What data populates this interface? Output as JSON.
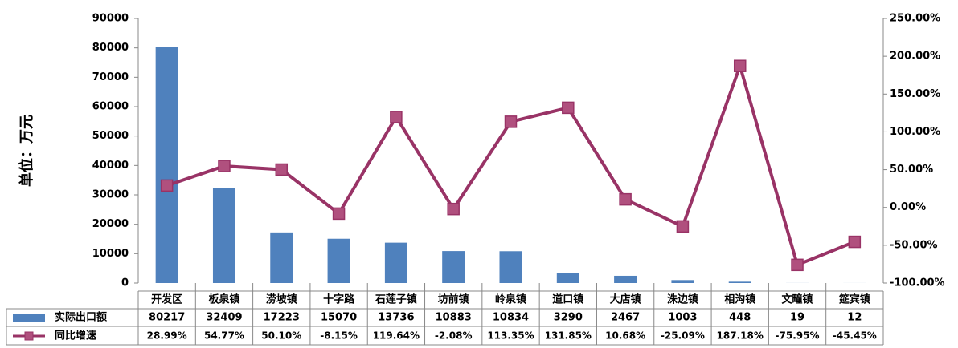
{
  "chart_data": {
    "type": "bar",
    "y_label": "单位：万元",
    "categories": [
      "开发区",
      "板泉镇",
      "涝坡镇",
      "十字路",
      "石莲子镇",
      "坊前镇",
      "岭泉镇",
      "道口镇",
      "大店镇",
      "洙边镇",
      "相沟镇",
      "文疃镇",
      "筵宾镇"
    ],
    "series": [
      {
        "name": "实际出口额",
        "color": "#4f81bd",
        "type": "bar",
        "values": [
          80217,
          32409,
          17223,
          15070,
          13736,
          10883,
          10834,
          3290,
          2467,
          1003,
          448,
          19,
          12
        ]
      },
      {
        "name": "同比增速",
        "color": "#993366",
        "type": "line",
        "axis": "y2",
        "values": [
          28.99,
          54.77,
          50.1,
          -8.15,
          119.64,
          -2.08,
          113.35,
          131.85,
          10.68,
          -25.09,
          187.18,
          -75.95,
          -45.45
        ],
        "value_labels": [
          "28.99%",
          "54.77%",
          "50.10%",
          "-8.15%",
          "119.64%",
          "-2.08%",
          "113.35%",
          "131.85%",
          "10.68%",
          "-25.09%",
          "187.18%",
          "-75.95%",
          "-45.45%"
        ]
      }
    ],
    "ylim": [
      0,
      90000
    ],
    "yticks": [
      0,
      10000,
      20000,
      30000,
      40000,
      50000,
      60000,
      70000,
      80000,
      90000
    ],
    "y2lim": [
      -100,
      250
    ],
    "y2ticks": [
      {
        "value": -100,
        "label": "-100.00%"
      },
      {
        "value": -50,
        "label": "-50.00%"
      },
      {
        "value": 0,
        "label": "0.00%"
      },
      {
        "value": 50,
        "label": "50.00%"
      },
      {
        "value": 100,
        "label": "100.00%"
      },
      {
        "value": 150,
        "label": "150.00%"
      },
      {
        "value": 200,
        "label": "200.00%"
      },
      {
        "value": 250,
        "label": "250.00%"
      }
    ]
  }
}
